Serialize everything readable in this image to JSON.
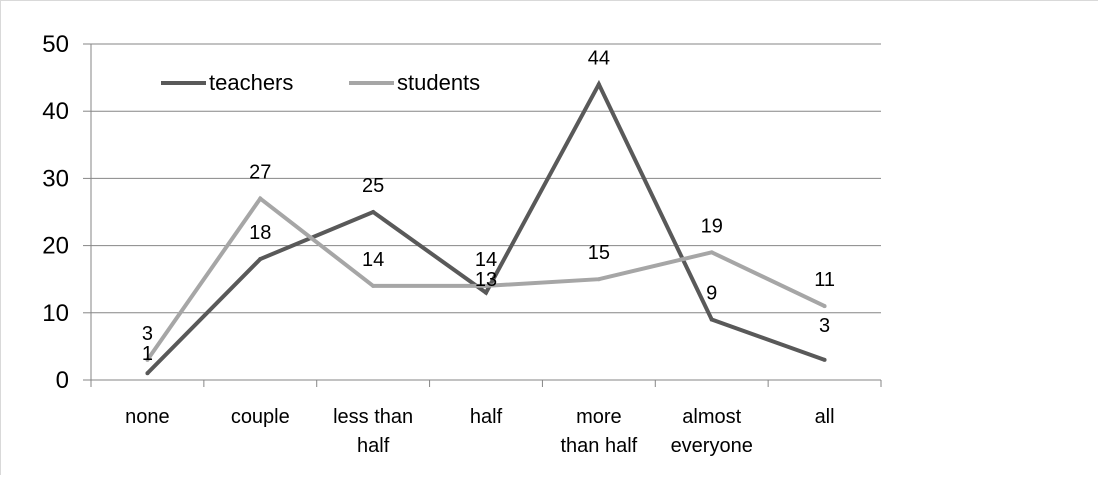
{
  "chart_data": {
    "type": "line",
    "title": "",
    "xlabel": "",
    "ylabel": "",
    "categories": [
      [
        "none"
      ],
      [
        "couple"
      ],
      [
        "less than",
        "half"
      ],
      [
        "half"
      ],
      [
        "more",
        "than half"
      ],
      [
        "almost",
        "everyone"
      ],
      [
        "all"
      ]
    ],
    "series": [
      {
        "name": "teachers",
        "color": "#595959",
        "values": [
          1,
          18,
          25,
          13,
          44,
          9,
          3
        ]
      },
      {
        "name": "students",
        "color": "#a6a6a6",
        "values": [
          3,
          27,
          14,
          14,
          15,
          19,
          11
        ]
      }
    ],
    "ylim": [
      0,
      50
    ],
    "yticks": [
      0,
      10,
      20,
      30,
      40,
      50
    ],
    "grid": true,
    "legend_position": "top-left"
  }
}
